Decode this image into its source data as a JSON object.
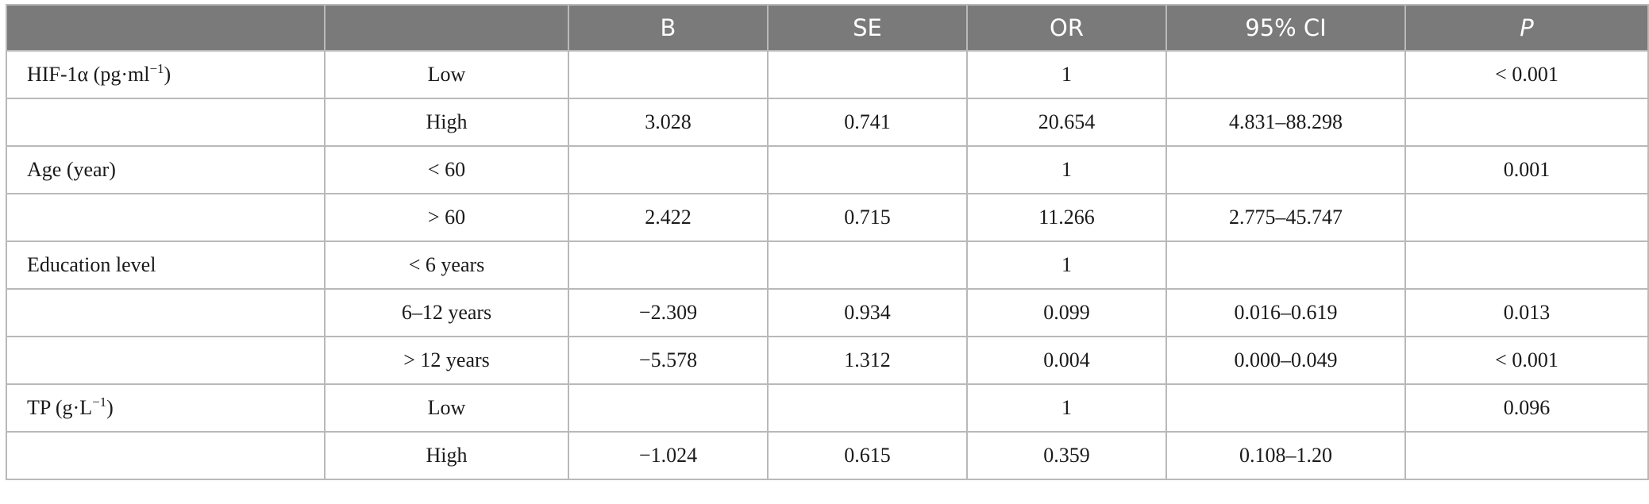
{
  "table": {
    "headers": [
      "",
      "",
      "B",
      "SE",
      "OR",
      "95% CI",
      "P"
    ],
    "rows": [
      {
        "variable": "HIF-1α (pg·ml",
        "variable_sup": "−1",
        "variable_tail": ")",
        "level": "Low",
        "B": "",
        "SE": "",
        "OR": "1",
        "CI": "",
        "P": "< 0.001"
      },
      {
        "variable": "",
        "variable_sup": "",
        "variable_tail": "",
        "level": "High",
        "B": "3.028",
        "SE": "0.741",
        "OR": "20.654",
        "CI": "4.831–88.298",
        "P": ""
      },
      {
        "variable": "Age (year)",
        "variable_sup": "",
        "variable_tail": "",
        "level": "< 60",
        "B": "",
        "SE": "",
        "OR": "1",
        "CI": "",
        "P": "0.001"
      },
      {
        "variable": "",
        "variable_sup": "",
        "variable_tail": "",
        "level": "> 60",
        "B": "2.422",
        "SE": "0.715",
        "OR": "11.266",
        "CI": "2.775–45.747",
        "P": ""
      },
      {
        "variable": "Education level",
        "variable_sup": "",
        "variable_tail": "",
        "level": "< 6 years",
        "B": "",
        "SE": "",
        "OR": "1",
        "CI": "",
        "P": ""
      },
      {
        "variable": "",
        "variable_sup": "",
        "variable_tail": "",
        "level": "6–12 years",
        "B": "−2.309",
        "SE": "0.934",
        "OR": "0.099",
        "CI": "0.016–0.619",
        "P": "0.013"
      },
      {
        "variable": "",
        "variable_sup": "",
        "variable_tail": "",
        "level": "> 12 years",
        "B": "−5.578",
        "SE": "1.312",
        "OR": "0.004",
        "CI": "0.000–0.049",
        "P": "< 0.001"
      },
      {
        "variable": "TP (g·L",
        "variable_sup": "−1",
        "variable_tail": ")",
        "level": "Low",
        "B": "",
        "SE": "",
        "OR": "1",
        "CI": "",
        "P": "0.096"
      },
      {
        "variable": "",
        "variable_sup": "",
        "variable_tail": "",
        "level": "High",
        "B": "−1.024",
        "SE": "0.615",
        "OR": "0.359",
        "CI": "0.108–1.20",
        "P": ""
      }
    ]
  }
}
